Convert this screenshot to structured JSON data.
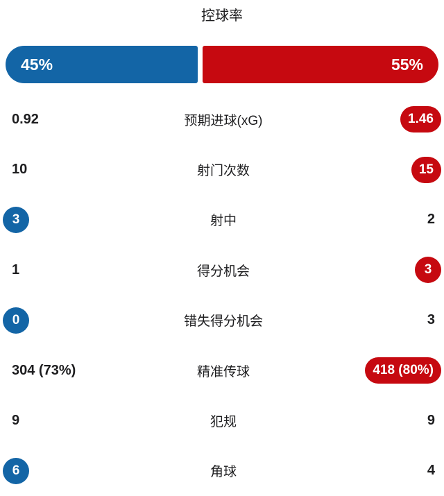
{
  "colors": {
    "home": "#1365a6",
    "away": "#c60910",
    "text": "#1d1d1f",
    "background": "#ffffff"
  },
  "possession": {
    "title": "控球率",
    "home_label": "45%",
    "away_label": "55%",
    "home_pct": 45,
    "away_pct": 55
  },
  "stats": [
    {
      "label": "预期进球(xG)",
      "home": "0.92",
      "away": "1.46",
      "highlight": "away"
    },
    {
      "label": "射门次数",
      "home": "10",
      "away": "15",
      "highlight": "away"
    },
    {
      "label": "射中",
      "home": "3",
      "away": "2",
      "highlight": "home"
    },
    {
      "label": "得分机会",
      "home": "1",
      "away": "3",
      "highlight": "away"
    },
    {
      "label": "错失得分机会",
      "home": "0",
      "away": "3",
      "highlight": "home"
    },
    {
      "label": "精准传球",
      "home": "304 (73%)",
      "away": "418 (80%)",
      "highlight": "away"
    },
    {
      "label": "犯规",
      "home": "9",
      "away": "9",
      "highlight": "none"
    },
    {
      "label": "角球",
      "home": "6",
      "away": "4",
      "highlight": "home"
    }
  ],
  "chart_data": {
    "type": "bar",
    "title": "控球率",
    "categories": [
      "控球率 (%)",
      "预期进球(xG)",
      "射门次数",
      "射中",
      "得分机会",
      "错失得分机会",
      "精准传球",
      "精准传球率 (%)",
      "犯规",
      "角球"
    ],
    "series": [
      {
        "name": "home",
        "color": "#1365a6",
        "values": [
          45,
          0.92,
          10,
          3,
          1,
          0,
          304,
          73,
          9,
          6
        ]
      },
      {
        "name": "away",
        "color": "#c60910",
        "values": [
          55,
          1.46,
          15,
          2,
          3,
          3,
          418,
          80,
          9,
          4
        ]
      }
    ],
    "legend_position": "none",
    "grid": false,
    "layout": "horizontal paired comparison list, winner value shown in team-colored pill"
  }
}
